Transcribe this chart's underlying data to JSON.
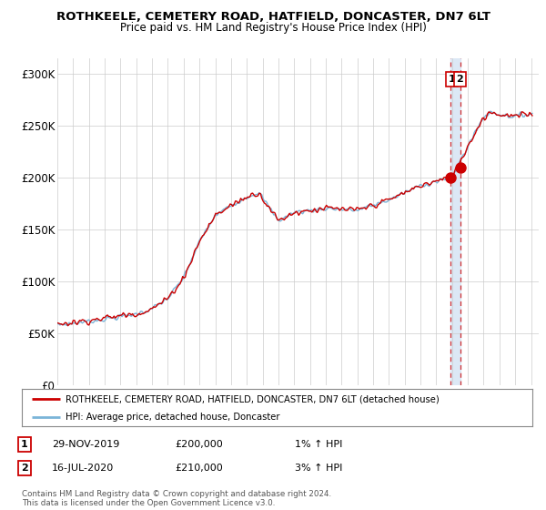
{
  "title": "ROTHKEELE, CEMETERY ROAD, HATFIELD, DONCASTER, DN7 6LT",
  "subtitle": "Price paid vs. HM Land Registry's House Price Index (HPI)",
  "ylabel_ticks": [
    "£0",
    "£50K",
    "£100K",
    "£150K",
    "£200K",
    "£250K",
    "£300K"
  ],
  "ytick_vals": [
    0,
    50000,
    100000,
    150000,
    200000,
    250000,
    300000
  ],
  "ylim": [
    0,
    315000
  ],
  "xlim_start": 1995.0,
  "xlim_end": 2025.5,
  "hpi_color": "#7ab4d8",
  "price_color": "#cc0000",
  "legend_label_1": "ROTHKEELE, CEMETERY ROAD, HATFIELD, DONCASTER, DN7 6LT (detached house)",
  "legend_label_2": "HPI: Average price, detached house, Doncaster",
  "transaction_1_label": "1",
  "transaction_1_date": "29-NOV-2019",
  "transaction_1_price": "£200,000",
  "transaction_1_hpi": "1% ↑ HPI",
  "transaction_1_year": 2019.92,
  "transaction_1_value": 200000,
  "transaction_2_label": "2",
  "transaction_2_date": "16-JUL-2020",
  "transaction_2_price": "£210,000",
  "transaction_2_hpi": "3% ↑ HPI",
  "transaction_2_year": 2020.54,
  "transaction_2_value": 210000,
  "footnote": "Contains HM Land Registry data © Crown copyright and database right 2024.\nThis data is licensed under the Open Government Licence v3.0.",
  "bg_color": "#ffffff",
  "grid_color": "#cccccc",
  "shade_color": "#dce8f5"
}
